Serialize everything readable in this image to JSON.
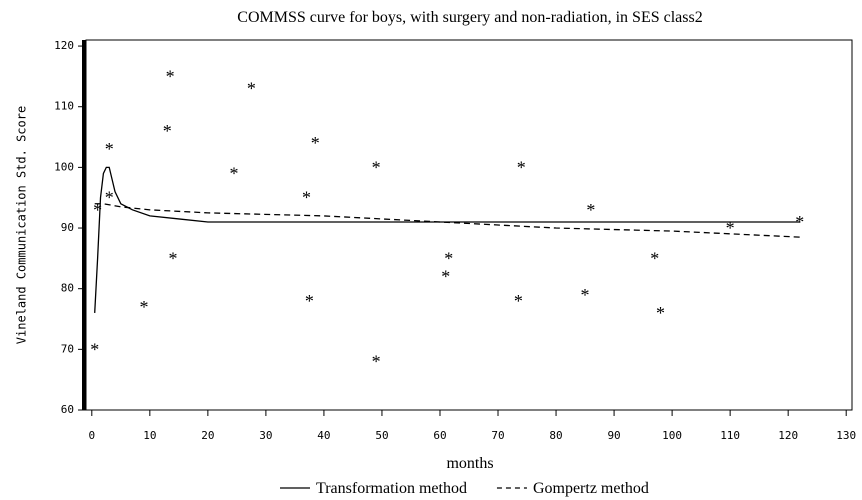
{
  "chart_data": {
    "type": "line",
    "title": "COMMSS curve for boys, with surgery and non-radiation, in SES class2",
    "x_label": "months",
    "y_label": "Vineland Communication Std. Score",
    "xlim": [
      -1,
      131
    ],
    "ylim": [
      60,
      121
    ],
    "xticks": [
      0,
      10,
      20,
      30,
      40,
      50,
      60,
      70,
      80,
      90,
      100,
      110,
      120,
      130
    ],
    "yticks": [
      60,
      70,
      80,
      90,
      100,
      110,
      120
    ],
    "points": {
      "marker": "*",
      "color": "#000000",
      "x": [
        0.5,
        1,
        3,
        3,
        9,
        13,
        13.5,
        14,
        24.5,
        27.5,
        37,
        37.5,
        38.5,
        49,
        49,
        61,
        61.5,
        73.5,
        74,
        85,
        86,
        97,
        98,
        110,
        122
      ],
      "y": [
        70,
        93,
        103,
        95,
        77,
        106,
        115,
        85,
        99,
        113,
        95,
        78,
        104,
        100,
        68,
        82,
        85,
        78,
        100,
        79,
        93,
        85,
        76,
        90,
        91
      ]
    },
    "series": [
      {
        "name": "Transformation method",
        "color": "#000000",
        "style": "solid",
        "x": [
          0.5,
          1,
          1.5,
          2,
          2.5,
          3,
          3.5,
          4,
          5,
          7,
          10,
          15,
          20,
          30,
          50,
          60,
          80,
          100,
          122
        ],
        "values": [
          76,
          85,
          95,
          99,
          100,
          100,
          98,
          96,
          94,
          93,
          92,
          91.5,
          91,
          91,
          91,
          91,
          91,
          91,
          91
        ]
      },
      {
        "name": "Gompertz method",
        "color": "#000000",
        "style": "dashed",
        "x": [
          0.5,
          2,
          5,
          10,
          20,
          40,
          60,
          80,
          100,
          122
        ],
        "values": [
          94,
          94,
          93.5,
          93,
          92.5,
          92,
          91,
          90,
          89.5,
          88.5
        ]
      }
    ]
  }
}
